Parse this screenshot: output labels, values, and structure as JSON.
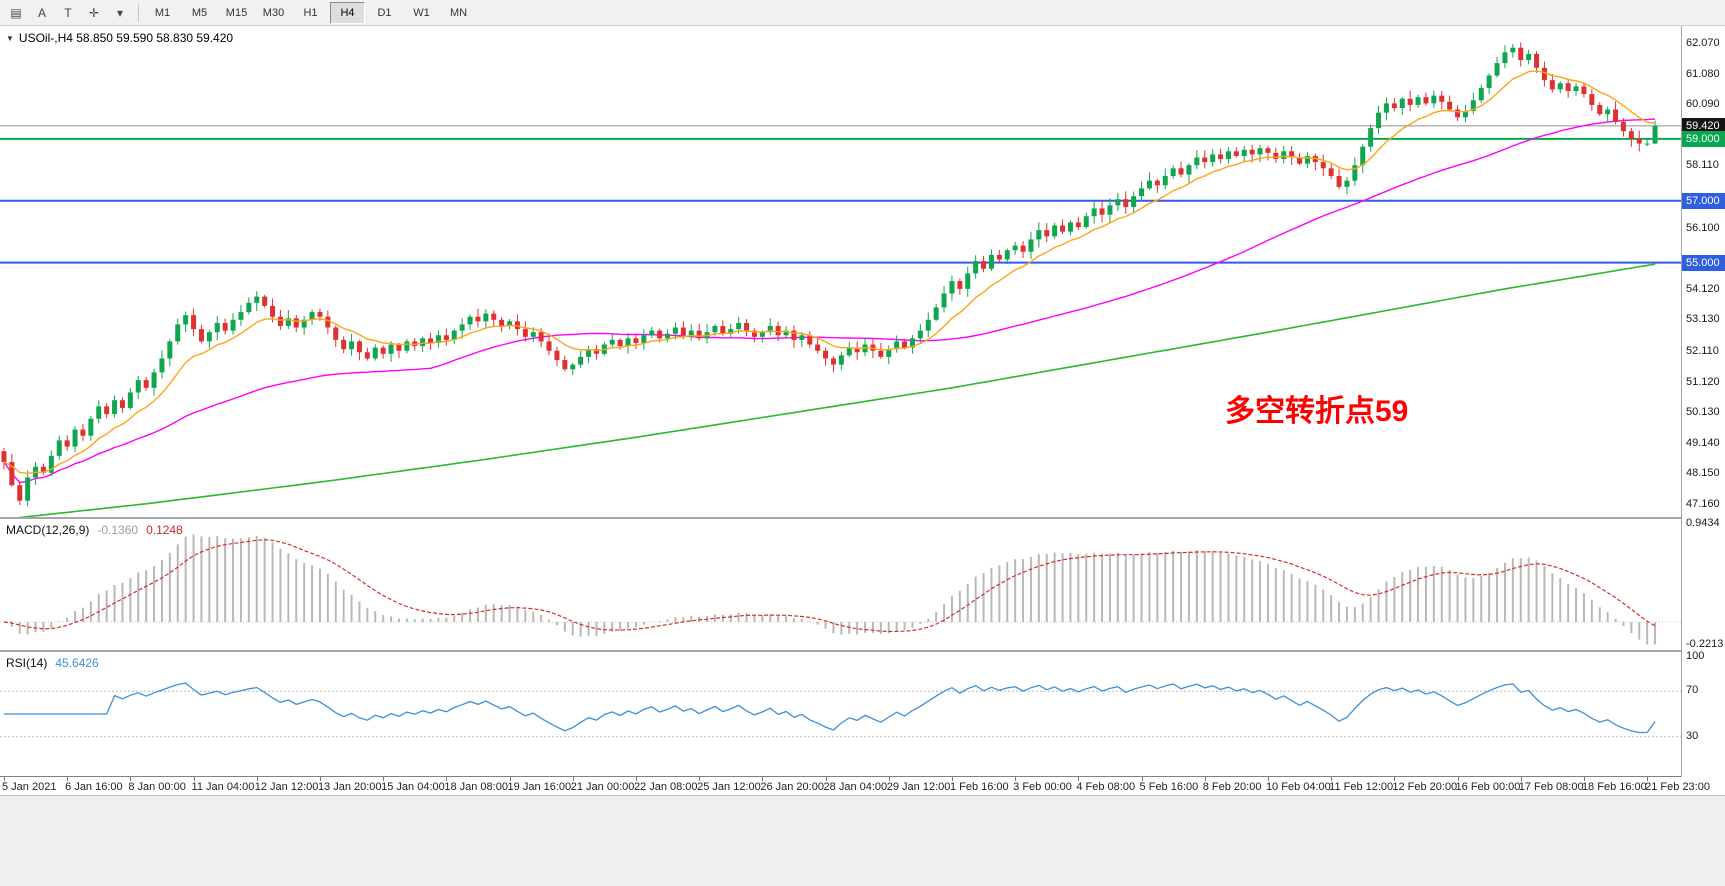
{
  "toolbar": {
    "icons": [
      {
        "name": "chart-window-icon",
        "glyph": "▤"
      },
      {
        "name": "cursor-tool-icon",
        "glyph": "A"
      },
      {
        "name": "text-tool-icon",
        "glyph": "T"
      },
      {
        "name": "crosshair-tool-icon",
        "glyph": "✛"
      },
      {
        "name": "dropdown-caret-icon",
        "glyph": "▾"
      }
    ],
    "timeframes": [
      {
        "label": "M1",
        "active": false
      },
      {
        "label": "M5",
        "active": false
      },
      {
        "label": "M15",
        "active": false
      },
      {
        "label": "M30",
        "active": false
      },
      {
        "label": "H1",
        "active": false
      },
      {
        "label": "H4",
        "active": true
      },
      {
        "label": "D1",
        "active": false
      },
      {
        "label": "W1",
        "active": false
      },
      {
        "label": "MN",
        "active": false
      }
    ]
  },
  "chart": {
    "header_caret": "▼",
    "symbol_line": "USOil-,H4  58.850 59.590 58.830 59.420",
    "annotation": "多空转折点59",
    "annotation_color": "#FF0000",
    "hlines": [
      {
        "price": 59.42,
        "color": "#8f8f8f",
        "width": 1
      },
      {
        "price": 59.0,
        "color": "#07A84E",
        "width": 2
      },
      {
        "price": 57.0,
        "color": "#2F5FE0",
        "width": 2
      },
      {
        "price": 55.0,
        "color": "#2F5FE0",
        "width": 2
      }
    ]
  },
  "price_axis": {
    "labels": [
      "62.070",
      "61.080",
      "60.090",
      "58.110",
      "56.100",
      "54.120",
      "53.130",
      "52.110",
      "51.120",
      "50.130",
      "49.140",
      "48.150",
      "47.160"
    ],
    "badges": [
      {
        "text": "59.420",
        "bg": "#141414"
      },
      {
        "text": "59.000",
        "bg": "#07A84E"
      },
      {
        "text": "57.000",
        "bg": "#2F5FE0"
      },
      {
        "text": "55.000",
        "bg": "#2F5FE0"
      }
    ]
  },
  "time_axis": {
    "labels": [
      "5 Jan 2021",
      "6 Jan 16:00",
      "8 Jan 00:00",
      "11 Jan 04:00",
      "12 Jan 12:00",
      "13 Jan 20:00",
      "15 Jan 04:00",
      "18 Jan 08:00",
      "19 Jan 16:00",
      "21 Jan 00:00",
      "22 Jan 08:00",
      "25 Jan 12:00",
      "26 Jan 20:00",
      "28 Jan 04:00",
      "29 Jan 12:00",
      "1 Feb 16:00",
      "3 Feb 00:00",
      "4 Feb 08:00",
      "5 Feb 16:00",
      "8 Feb 20:00",
      "10 Feb 04:00",
      "11 Feb 12:00",
      "12 Feb 20:00",
      "16 Feb 00:00",
      "17 Feb 08:00",
      "18 Feb 16:00",
      "21 Feb 23:00"
    ]
  },
  "colors": {
    "bull": "#0FA64F",
    "bear": "#E03131",
    "ma_fast": "#FFA31A",
    "ma_mid": "#FF00FF",
    "ma_slow": "#2DB92D",
    "macd_hist": "#B8B8B8",
    "macd_signal": "#D03030",
    "macd_value_main": "#9C9C9C",
    "macd_value_signal": "#CC2A2A",
    "rsi_line": "#3F8FD6",
    "rsi_value": "#3F8FD6"
  },
  "chart_data": {
    "type": "candlestick",
    "symbol": "USOil-",
    "timeframe": "H4",
    "current_ohlc": {
      "open": 58.85,
      "high": 59.59,
      "low": 58.83,
      "close": 59.42
    },
    "price_range": {
      "min": 47.16,
      "max": 62.07
    },
    "first_open": 48.9,
    "closes": [
      48.55,
      47.8,
      47.3,
      48.05,
      48.4,
      48.2,
      48.75,
      49.25,
      49.05,
      49.6,
      49.4,
      49.95,
      50.35,
      50.1,
      50.55,
      50.3,
      50.8,
      51.2,
      50.95,
      51.45,
      51.9,
      52.45,
      53.0,
      53.3,
      52.85,
      52.45,
      52.75,
      53.05,
      52.8,
      53.15,
      53.4,
      53.7,
      53.9,
      53.6,
      53.25,
      52.95,
      53.2,
      52.9,
      53.15,
      53.4,
      53.25,
      52.9,
      52.5,
      52.2,
      52.45,
      52.1,
      51.9,
      52.25,
      52.05,
      52.35,
      52.15,
      52.45,
      52.3,
      52.55,
      52.4,
      52.65,
      52.5,
      52.8,
      53.0,
      53.25,
      53.1,
      53.35,
      53.15,
      52.95,
      53.1,
      52.85,
      52.6,
      52.75,
      52.45,
      52.15,
      51.85,
      51.55,
      51.7,
      51.95,
      52.2,
      52.05,
      52.35,
      52.5,
      52.3,
      52.55,
      52.4,
      52.65,
      52.8,
      52.55,
      52.7,
      52.9,
      52.65,
      52.8,
      52.55,
      52.75,
      52.95,
      52.7,
      52.85,
      53.05,
      52.8,
      52.6,
      52.75,
      52.95,
      52.65,
      52.8,
      52.5,
      52.65,
      52.35,
      52.15,
      51.9,
      51.7,
      52.0,
      52.25,
      52.1,
      52.35,
      52.15,
      51.95,
      52.2,
      52.45,
      52.25,
      52.55,
      52.8,
      53.15,
      53.55,
      54.0,
      54.4,
      54.15,
      54.65,
      55.05,
      54.8,
      55.25,
      55.1,
      55.4,
      55.55,
      55.35,
      55.75,
      56.05,
      55.85,
      56.2,
      56.0,
      56.3,
      56.15,
      56.5,
      56.75,
      56.55,
      56.85,
      57.05,
      56.8,
      57.15,
      57.4,
      57.65,
      57.5,
      57.8,
      58.05,
      57.85,
      58.15,
      58.4,
      58.25,
      58.5,
      58.35,
      58.6,
      58.45,
      58.65,
      58.5,
      58.7,
      58.55,
      58.35,
      58.6,
      58.4,
      58.2,
      58.45,
      58.25,
      58.05,
      57.8,
      57.45,
      57.65,
      58.15,
      58.75,
      59.35,
      59.85,
      60.15,
      60.0,
      60.3,
      60.1,
      60.35,
      60.15,
      60.4,
      60.2,
      59.95,
      59.7,
      59.9,
      60.25,
      60.65,
      61.05,
      61.45,
      61.8,
      61.95,
      61.55,
      61.75,
      61.3,
      60.9,
      60.6,
      60.8,
      60.55,
      60.7,
      60.45,
      60.1,
      59.8,
      59.95,
      59.55,
      59.25,
      59.0,
      58.85,
      58.85,
      59.42
    ],
    "overrides": {
      "2": {
        "l": 47.16
      },
      "191": {
        "h": 62.07
      },
      "209": {
        "o": 58.85,
        "h": 59.59,
        "l": 58.83,
        "c": 59.42
      }
    },
    "ma_fast_period": 10,
    "ma_mid_period": 55,
    "ma_slow_anchors": [
      [
        0,
        46.7
      ],
      [
        18,
        47.2
      ],
      [
        40,
        47.9
      ],
      [
        60,
        48.6
      ],
      [
        80,
        49.35
      ],
      [
        100,
        50.15
      ],
      [
        120,
        50.95
      ],
      [
        140,
        51.85
      ],
      [
        160,
        52.75
      ],
      [
        175,
        53.45
      ],
      [
        190,
        54.15
      ],
      [
        209,
        54.95
      ]
    ],
    "macd": {
      "label": "MACD(12,26,9)",
      "value_main": "-0.1360",
      "value_signal": "0.1248",
      "axis_max": 0.9434,
      "axis_min": -0.2213,
      "axis_max_text": "0.9434",
      "axis_min_text": "-0.2213",
      "fast": 12,
      "slow": 26,
      "signal": 9
    },
    "rsi": {
      "label": "RSI(14)",
      "value": "45.6426",
      "period": 14,
      "levels": [
        70,
        30
      ],
      "axis_labels": [
        "100",
        "70",
        "30"
      ]
    }
  }
}
